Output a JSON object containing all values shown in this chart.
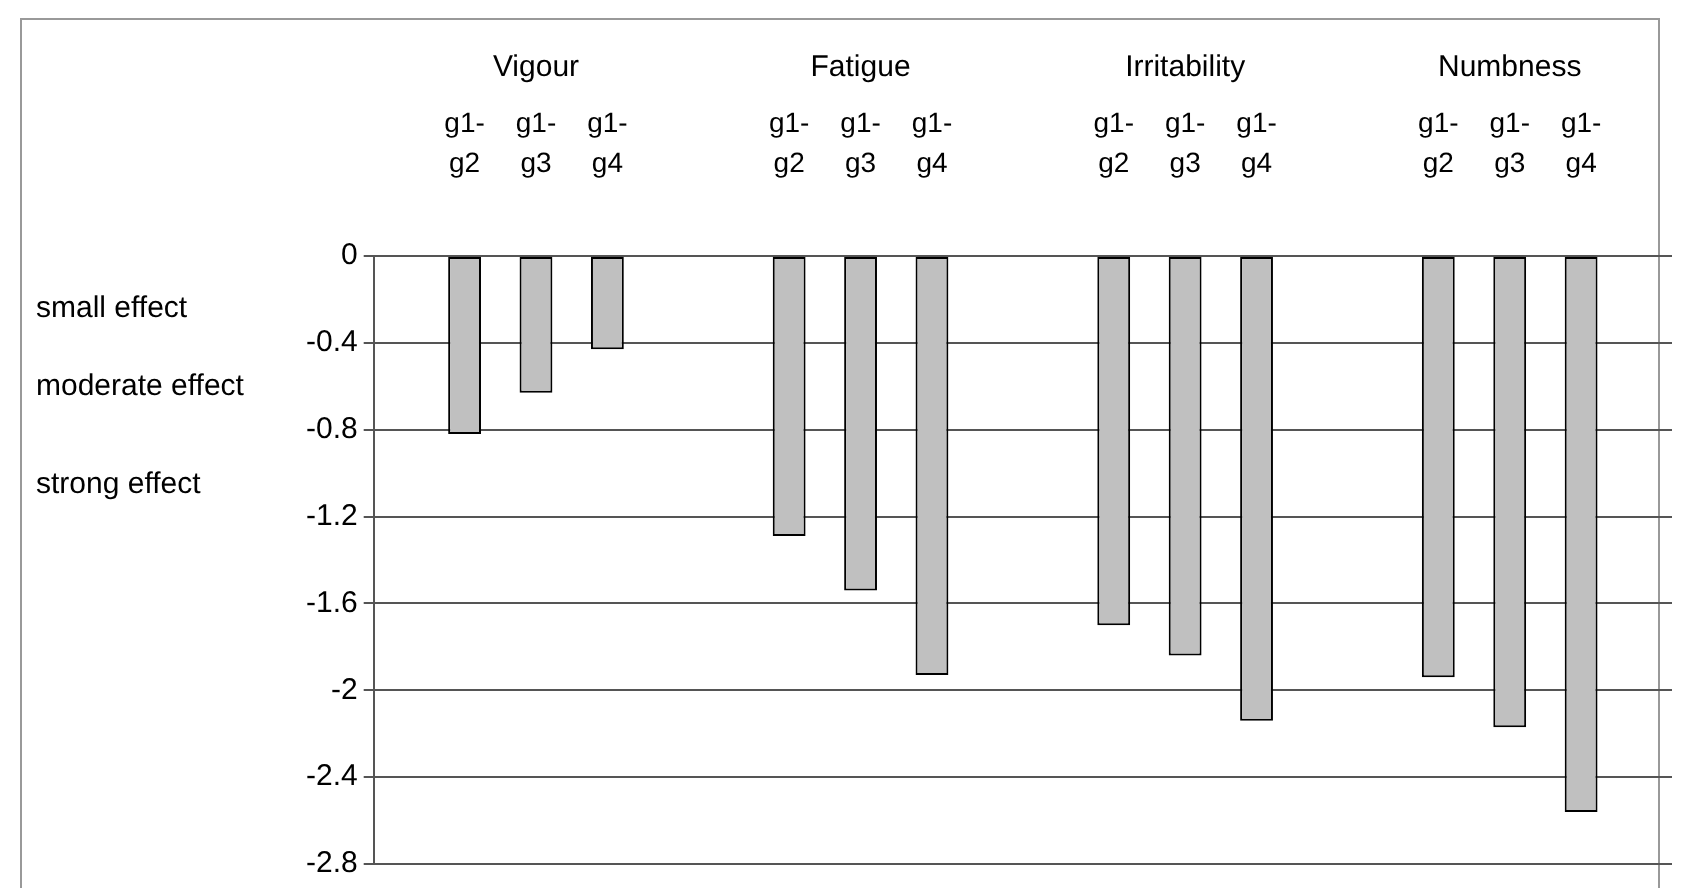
{
  "chart_data": {
    "type": "bar",
    "categories": [
      "Vigour",
      "Fatigue",
      "Irritability",
      "Numbness"
    ],
    "series": [
      {
        "name": "g1-g2",
        "color": "#c0c0c0",
        "values": [
          -0.82,
          -1.29,
          -1.7,
          -1.94
        ]
      },
      {
        "name": "g1-g3",
        "color": "#c0c0c0",
        "values": [
          -0.63,
          -1.54,
          -1.84,
          -2.17
        ]
      },
      {
        "name": "g1-g4",
        "color": "#c0c0c0",
        "values": [
          -0.43,
          -1.93,
          -2.14,
          -2.56
        ]
      }
    ],
    "ylim": [
      -2.8,
      0
    ],
    "yticks": [
      -2.8,
      -2.4,
      -2,
      -1.6,
      -1.2,
      -0.8,
      -0.4,
      0
    ],
    "grid": "y",
    "legend": false,
    "annotations": [
      "small effect",
      "moderate effect",
      "strong effect"
    ]
  }
}
